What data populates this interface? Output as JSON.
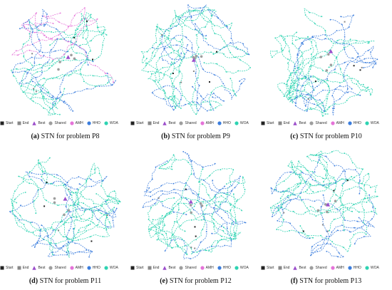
{
  "legend": {
    "start": "Start",
    "end": "End",
    "best": "Best",
    "shared": "Shared",
    "amh": "AMH",
    "hho": "HHO",
    "woa": "WOA"
  },
  "colors": {
    "start": "#222222",
    "end": "#888888",
    "best": "#9b4dca",
    "shared": "#9e9e9e",
    "amh": "#e573d8",
    "hho": "#3b7ddd",
    "woa": "#2ed3b2"
  },
  "panels": [
    {
      "label": "(a)",
      "caption": "STN for problem P8"
    },
    {
      "label": "(b)",
      "caption": "STN for problem P9"
    },
    {
      "label": "(c)",
      "caption": "STN for problem P10"
    },
    {
      "label": "(d)",
      "caption": "STN for problem P11"
    },
    {
      "label": "(e)",
      "caption": "STN for problem P12"
    },
    {
      "label": "(f)",
      "caption": "STN for problem P13"
    }
  ]
}
